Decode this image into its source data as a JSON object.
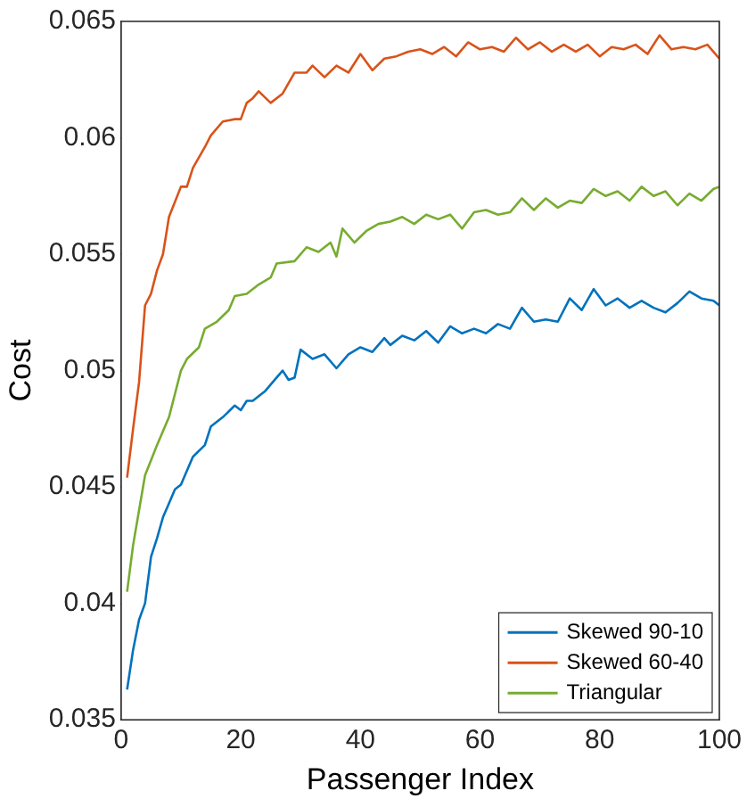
{
  "chart_data": {
    "type": "line",
    "xlabel": "Passenger Index",
    "ylabel": "Cost",
    "xlim": [
      0,
      100
    ],
    "ylim": [
      0.035,
      0.065
    ],
    "xticks": [
      0,
      20,
      40,
      60,
      80,
      100
    ],
    "yticks": [
      0.035,
      0.04,
      0.045,
      0.05,
      0.055,
      0.06,
      0.065
    ],
    "grid": false,
    "legend": "bottom right",
    "marker": "none",
    "line_style": "solid",
    "series": [
      {
        "name": "Skewed 90-10",
        "color": "#0072bd",
        "x": [
          1,
          2,
          3,
          4,
          5,
          6,
          7,
          8,
          9,
          10,
          12,
          14,
          15,
          17,
          19,
          20,
          21,
          22,
          24,
          26,
          27,
          28,
          29,
          30,
          32,
          34,
          36,
          38,
          40,
          42,
          44,
          45,
          47,
          49,
          51,
          53,
          55,
          57,
          59,
          61,
          63,
          65,
          67,
          69,
          71,
          73,
          75,
          77,
          79,
          81,
          83,
          85,
          87,
          89,
          91,
          93,
          95,
          97,
          99,
          100
        ],
        "values": [
          0.0363,
          0.038,
          0.0393,
          0.04,
          0.042,
          0.0428,
          0.0437,
          0.0443,
          0.0449,
          0.0451,
          0.0463,
          0.0468,
          0.0476,
          0.048,
          0.0485,
          0.0483,
          0.0487,
          0.0487,
          0.0491,
          0.0497,
          0.05,
          0.0496,
          0.0497,
          0.0509,
          0.0505,
          0.0507,
          0.0501,
          0.0507,
          0.051,
          0.0508,
          0.0514,
          0.0511,
          0.0515,
          0.0513,
          0.0517,
          0.0512,
          0.0519,
          0.0516,
          0.0518,
          0.0516,
          0.052,
          0.0518,
          0.0527,
          0.0521,
          0.0522,
          0.0521,
          0.0531,
          0.0526,
          0.0535,
          0.0528,
          0.0531,
          0.0527,
          0.053,
          0.0527,
          0.0525,
          0.0529,
          0.0534,
          0.0531,
          0.053,
          0.0528
        ]
      },
      {
        "name": "Skewed 60-40",
        "color": "#d95319",
        "x": [
          1,
          2,
          3,
          4,
          5,
          6,
          7,
          8,
          10,
          11,
          12,
          14,
          15,
          17,
          19,
          20,
          21,
          22,
          23,
          25,
          27,
          29,
          31,
          32,
          34,
          36,
          38,
          40,
          42,
          44,
          46,
          48,
          50,
          52,
          54,
          56,
          58,
          60,
          62,
          64,
          66,
          68,
          70,
          72,
          74,
          76,
          78,
          80,
          82,
          84,
          86,
          88,
          90,
          92,
          94,
          96,
          98,
          100
        ],
        "values": [
          0.0454,
          0.0475,
          0.0495,
          0.0528,
          0.0533,
          0.0543,
          0.055,
          0.0566,
          0.0579,
          0.0579,
          0.0587,
          0.0596,
          0.0601,
          0.0607,
          0.0608,
          0.0608,
          0.0615,
          0.0617,
          0.062,
          0.0615,
          0.0619,
          0.0628,
          0.0628,
          0.0631,
          0.0626,
          0.0631,
          0.0628,
          0.0636,
          0.0629,
          0.0634,
          0.0635,
          0.0637,
          0.0638,
          0.0636,
          0.0639,
          0.0635,
          0.0641,
          0.0638,
          0.0639,
          0.0637,
          0.0643,
          0.0638,
          0.0641,
          0.0637,
          0.064,
          0.0637,
          0.064,
          0.0635,
          0.0639,
          0.0638,
          0.064,
          0.0636,
          0.0644,
          0.0638,
          0.0639,
          0.0638,
          0.064,
          0.0634
        ]
      },
      {
        "name": "Triangular",
        "color": "#77ac30",
        "x": [
          1,
          2,
          3,
          4,
          6,
          8,
          9,
          10,
          11,
          13,
          14,
          16,
          18,
          19,
          21,
          23,
          25,
          26,
          29,
          31,
          33,
          35,
          36,
          37,
          39,
          41,
          43,
          45,
          47,
          49,
          51,
          53,
          55,
          57,
          59,
          61,
          63,
          65,
          67,
          69,
          71,
          73,
          75,
          77,
          79,
          81,
          83,
          85,
          87,
          89,
          91,
          93,
          95,
          97,
          99,
          100
        ],
        "values": [
          0.0405,
          0.0425,
          0.044,
          0.0455,
          0.0468,
          0.048,
          0.049,
          0.05,
          0.0505,
          0.051,
          0.0518,
          0.0521,
          0.0526,
          0.0532,
          0.0533,
          0.0537,
          0.054,
          0.0546,
          0.0547,
          0.0553,
          0.0551,
          0.0555,
          0.0549,
          0.0561,
          0.0555,
          0.056,
          0.0563,
          0.0564,
          0.0566,
          0.0563,
          0.0567,
          0.0565,
          0.0567,
          0.0561,
          0.0568,
          0.0569,
          0.0567,
          0.0568,
          0.0574,
          0.0569,
          0.0574,
          0.057,
          0.0573,
          0.0572,
          0.0578,
          0.0575,
          0.0577,
          0.0573,
          0.0579,
          0.0575,
          0.0577,
          0.0571,
          0.0576,
          0.0573,
          0.0578,
          0.0579
        ]
      }
    ]
  }
}
